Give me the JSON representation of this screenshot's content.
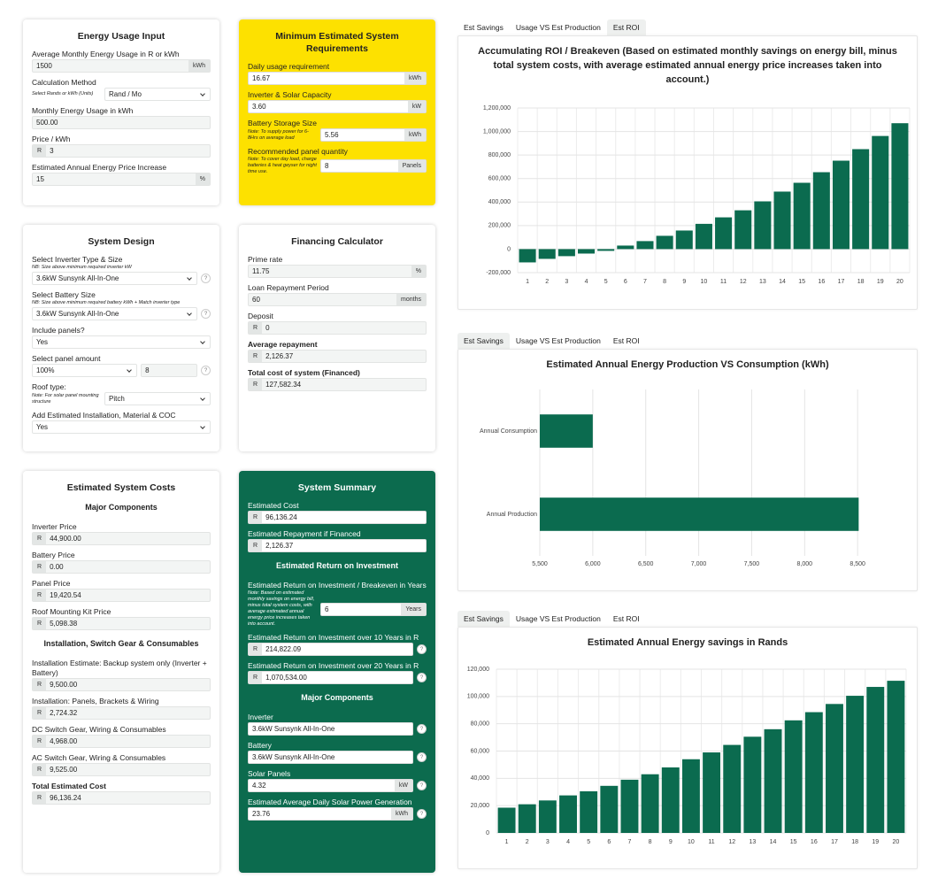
{
  "tabs": [
    "Est Savings",
    "Usage VS Est Production",
    "Est ROI"
  ],
  "cards": [
    {
      "title": "Energy Usage Input",
      "theme": "white",
      "fields": [
        {
          "label": "Average Monthly Energy Usage in R or kWh",
          "value": "1500",
          "unit": "kWh"
        },
        {
          "label": "Calculation Method",
          "note": "Select Rands or kWh (Units)",
          "value": "Rand / Mo",
          "select": true
        },
        {
          "label": "Monthly Energy Usage in kWh",
          "value": "500.00"
        },
        {
          "label": "Price / kWh",
          "prefix": "R",
          "value": "3"
        },
        {
          "label": "Estimated Annual Energy Price Increase",
          "value": "15",
          "unit": "%"
        }
      ]
    },
    {
      "title": "Minimum Estimated System Requirements",
      "theme": "yellow",
      "fields": [
        {
          "label": "Daily usage requirement",
          "value": "16.67",
          "unit": "kWh"
        },
        {
          "label": "Inverter & Solar Capacity",
          "value": "3.60",
          "unit": "kW"
        },
        {
          "label": "Battery Storage Size",
          "note": "Note: To supply power for 6-8Hrs on average load",
          "value": "5.56",
          "unit": "kWh"
        },
        {
          "label": "Recommended panel quantity",
          "note": "Note: To cover day load, charge batteries & heat geyser for night time use.",
          "value": "8",
          "unit": "Panels"
        }
      ]
    },
    {
      "title": "System Design",
      "theme": "white",
      "fields": [
        {
          "label": "Select Inverter Type & Size",
          "note": "NB: Size above minimum required inverter kW",
          "value": "3.6kW Sunsynk All-In-One",
          "select": true,
          "help": "?"
        },
        {
          "label": "Select Battery Size",
          "note": "NB: Size above minimum required battery kWh + Match inverter type",
          "value": "3.6kW Sunsynk All-In-One",
          "select": true,
          "help": "?"
        },
        {
          "label": "Include panels?",
          "value": "Yes",
          "select": true
        },
        {
          "label": "Select panel amount",
          "value": "100%",
          "select": true,
          "value2": "8",
          "help": "?"
        },
        {
          "label": "Roof type:",
          "note": "Note: For solar panel mounting structure",
          "value": "Pitch",
          "select": true
        },
        {
          "label": "Add Estimated Installation, Material & COC",
          "value": "Yes",
          "select": true
        }
      ]
    },
    {
      "title": "Financing Calculator",
      "theme": "white",
      "fields": [
        {
          "label": "Prime rate",
          "value": "11.75",
          "unit": "%"
        },
        {
          "label": "Loan Repayment Period",
          "value": "60",
          "unit": "months"
        },
        {
          "label": "Deposit",
          "prefix": "R",
          "value": "0"
        },
        {
          "label": "Average repayment",
          "bold": true,
          "prefix": "R",
          "value": "2,126.37"
        },
        {
          "label": "Total cost of system (Financed)",
          "bold": true,
          "prefix": "R",
          "value": "127,582.34"
        }
      ]
    },
    {
      "title": "Estimated System Costs",
      "theme": "white",
      "fields": [
        {
          "heading": "Major Components"
        },
        {
          "label": "Inverter Price",
          "prefix": "R",
          "value": "44,900.00"
        },
        {
          "label": "Battery Price",
          "prefix": "R",
          "value": "0.00"
        },
        {
          "label": "Panel Price",
          "prefix": "R",
          "value": "19,420.54"
        },
        {
          "label": "Roof Mounting Kit Price",
          "prefix": "R",
          "value": "5,098.38"
        },
        {
          "heading": "Installation, Switch Gear & Consumables"
        },
        {
          "label": "Installation Estimate: Backup system only (Inverter + Battery)",
          "prefix": "R",
          "value": "9,500.00"
        },
        {
          "label": "Installation: Panels, Brackets & Wiring",
          "prefix": "R",
          "value": "2,724.32"
        },
        {
          "label": "DC Switch Gear, Wiring & Consumables",
          "prefix": "R",
          "value": "4,968.00"
        },
        {
          "label": "AC Switch Gear, Wiring & Consumables",
          "prefix": "R",
          "value": "9,525.00"
        },
        {
          "label": "Total Estimated Cost",
          "bold": true,
          "prefix": "R",
          "value": "96,136.24"
        }
      ]
    },
    {
      "title": "System Summary",
      "theme": "green",
      "fields": [
        {
          "label": "Estimated Cost",
          "prefix": "R",
          "value": "96,136.24"
        },
        {
          "label": "Estimated Repayment if Financed",
          "prefix": "R",
          "value": "2,126.37"
        },
        {
          "heading": "Estimated Return on Investment"
        },
        {
          "label": "Estimated Return on Investment / Breakeven in Years",
          "note": "Note: Based on estimated monthly savings on energy bill, minus total system costs, with average estimated annual energy price increases taken into account.",
          "value": "6",
          "unit": "Years"
        },
        {
          "label": "Estimated Return on Investment over 10 Years in R",
          "prefix": "R",
          "value": "214,822.09",
          "help": "?"
        },
        {
          "label": "Estimated Return on Investment over 20 Years in R",
          "prefix": "R",
          "value": "1,070,534.00",
          "help": "?"
        },
        {
          "heading": "Major Components"
        },
        {
          "label": "Inverter",
          "value": "3.6kW Sunsynk All-In-One",
          "help": "?"
        },
        {
          "label": "Battery",
          "value": "3.6kW Sunsynk All-In-One",
          "help": "?"
        },
        {
          "label": "Solar Panels",
          "value": "4.32",
          "unit": "kW",
          "help": "?"
        },
        {
          "label": "Estimated Average Daily Solar Power Generation",
          "value": "23.76",
          "unit": "kWh",
          "help": "?"
        }
      ]
    }
  ],
  "chart_data": [
    {
      "type": "bar",
      "active_tab": 2,
      "title": "Accumulating ROI / Breakeven (Based on estimated monthly savings on energy bill, minus total system costs, with average estimated annual energy price increases taken into account.)",
      "categories": [
        "1",
        "2",
        "3",
        "4",
        "5",
        "6",
        "7",
        "8",
        "9",
        "10",
        "11",
        "12",
        "13",
        "14",
        "15",
        "16",
        "17",
        "18",
        "19",
        "20"
      ],
      "values": [
        -113000,
        -83000,
        -60000,
        -38000,
        -15000,
        30000,
        68000,
        113000,
        158000,
        214822,
        270000,
        330000,
        406000,
        489000,
        564000,
        654000,
        752000,
        850000,
        962000,
        1070534
      ],
      "color": "#0b6b4f",
      "ylim": [
        -200000,
        1200000
      ],
      "yticks": [
        {
          "value": -200000,
          "label": "-200,000"
        },
        0,
        {
          "value": 200000,
          "label": "200,000"
        },
        {
          "value": 400000,
          "label": "400,000"
        },
        {
          "value": 600000,
          "label": "600,000"
        },
        {
          "value": 800000,
          "label": "800,000"
        },
        {
          "value": 1000000,
          "label": "1,000,000"
        },
        {
          "value": 1200000,
          "label": "1,200,000"
        }
      ],
      "grid": true
    },
    {
      "type": "hbar",
      "active_tab": 0,
      "title": "Estimated Annual Energy Production VS Consumption (kWh)",
      "categories": [
        "Annual Consumption",
        "Annual Production"
      ],
      "values": [
        6000,
        8510
      ],
      "color": "#0b6b4f",
      "xlim": [
        5500,
        9050
      ],
      "xticks": [
        {
          "value": 5500,
          "label": "5,500"
        },
        {
          "value": 6000,
          "label": "6,000"
        },
        {
          "value": 6500,
          "label": "6,500"
        },
        {
          "value": 7000,
          "label": "7,000"
        },
        {
          "value": 7500,
          "label": "7,500"
        },
        {
          "value": 8000,
          "label": "8,000"
        },
        {
          "value": 8500,
          "label": "8,500"
        }
      ],
      "grid": true
    },
    {
      "type": "bar",
      "active_tab": 0,
      "title": "Estimated Annual Energy savings in Rands",
      "categories": [
        "1",
        "2",
        "3",
        "4",
        "5",
        "6",
        "7",
        "8",
        "9",
        "10",
        "11",
        "12",
        "13",
        "14",
        "15",
        "16",
        "17",
        "18",
        "19",
        "20"
      ],
      "values": [
        18500,
        21000,
        23800,
        27500,
        30500,
        34500,
        39000,
        43000,
        48000,
        54000,
        59000,
        64500,
        70500,
        76000,
        82500,
        88500,
        94500,
        100500,
        107000,
        111500
      ],
      "color": "#0b6b4f",
      "ylim": [
        0,
        120000
      ],
      "yticks": [
        0,
        {
          "value": 20000,
          "label": "20,000"
        },
        {
          "value": 40000,
          "label": "40,000"
        },
        {
          "value": 60000,
          "label": "60,000"
        },
        {
          "value": 80000,
          "label": "80,000"
        },
        {
          "value": 100000,
          "label": "100,000"
        },
        {
          "value": 120000,
          "label": "120,000"
        }
      ],
      "grid": true
    }
  ]
}
